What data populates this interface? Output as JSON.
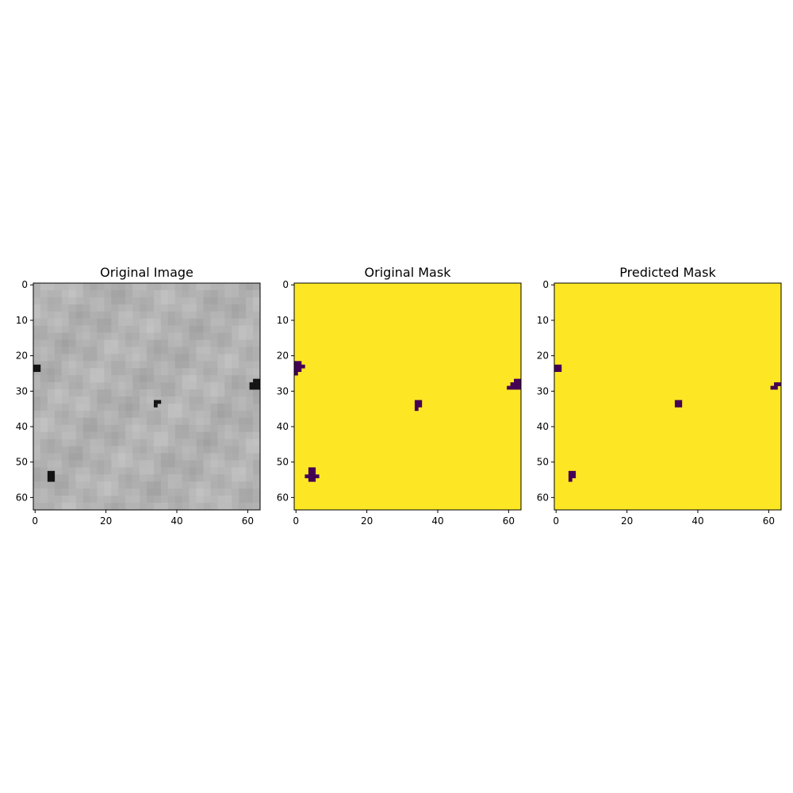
{
  "colors": {
    "mask_background": "#fde725",
    "mask_foreground": "#440154",
    "axis": "#000000",
    "image_base": "#b4b4b4",
    "image_spot": "#141414"
  },
  "chart_data": [
    {
      "type": "heatmap",
      "id": "original-image",
      "title": "Original Image",
      "colormap": "gray",
      "grid_size": [
        64,
        64
      ],
      "xlim": [
        -0.5,
        63.5
      ],
      "ylim": [
        63.5,
        -0.5
      ],
      "x_ticks": [
        0,
        20,
        40,
        60
      ],
      "y_ticks": [
        0,
        10,
        20,
        30,
        40,
        50,
        60
      ],
      "grid": false,
      "dark_cells": [
        [
          0,
          23
        ],
        [
          1,
          23
        ],
        [
          0,
          24
        ],
        [
          1,
          24
        ],
        [
          34,
          33
        ],
        [
          35,
          33
        ],
        [
          34,
          34
        ],
        [
          61,
          28
        ],
        [
          62,
          28
        ],
        [
          63,
          28
        ],
        [
          61,
          29
        ],
        [
          62,
          29
        ],
        [
          63,
          29
        ],
        [
          62,
          27
        ],
        [
          63,
          27
        ],
        [
          4,
          53
        ],
        [
          5,
          53
        ],
        [
          4,
          54
        ],
        [
          5,
          54
        ],
        [
          4,
          55
        ],
        [
          5,
          55
        ]
      ]
    },
    {
      "type": "heatmap",
      "id": "original-mask",
      "title": "Original Mask",
      "colormap": "viridis",
      "grid_size": [
        64,
        64
      ],
      "xlim": [
        -0.5,
        63.5
      ],
      "ylim": [
        63.5,
        -0.5
      ],
      "x_ticks": [
        0,
        20,
        40,
        60
      ],
      "y_ticks": [
        0,
        10,
        20,
        30,
        40,
        50,
        60
      ],
      "grid": false,
      "dark_cells": [
        [
          0,
          22
        ],
        [
          1,
          22
        ],
        [
          0,
          23
        ],
        [
          1,
          23
        ],
        [
          2,
          23
        ],
        [
          0,
          24
        ],
        [
          1,
          24
        ],
        [
          0,
          25
        ],
        [
          34,
          33
        ],
        [
          35,
          33
        ],
        [
          34,
          34
        ],
        [
          35,
          34
        ],
        [
          34,
          35
        ],
        [
          62,
          27
        ],
        [
          63,
          27
        ],
        [
          61,
          28
        ],
        [
          62,
          28
        ],
        [
          63,
          28
        ],
        [
          60,
          29
        ],
        [
          61,
          29
        ],
        [
          62,
          29
        ],
        [
          63,
          29
        ],
        [
          4,
          52
        ],
        [
          5,
          52
        ],
        [
          4,
          53
        ],
        [
          5,
          53
        ],
        [
          3,
          54
        ],
        [
          4,
          54
        ],
        [
          5,
          54
        ],
        [
          6,
          54
        ],
        [
          4,
          55
        ],
        [
          5,
          55
        ]
      ]
    },
    {
      "type": "heatmap",
      "id": "predicted-mask",
      "title": "Predicted Mask",
      "colormap": "viridis",
      "grid_size": [
        64,
        64
      ],
      "xlim": [
        -0.5,
        63.5
      ],
      "ylim": [
        63.5,
        -0.5
      ],
      "x_ticks": [
        0,
        20,
        40,
        60
      ],
      "y_ticks": [
        0,
        10,
        20,
        30,
        40,
        50,
        60
      ],
      "grid": false,
      "dark_cells": [
        [
          0,
          23
        ],
        [
          1,
          23
        ],
        [
          0,
          24
        ],
        [
          1,
          24
        ],
        [
          34,
          33
        ],
        [
          35,
          33
        ],
        [
          34,
          34
        ],
        [
          35,
          34
        ],
        [
          62,
          28
        ],
        [
          63,
          28
        ],
        [
          61,
          29
        ],
        [
          62,
          29
        ],
        [
          4,
          53
        ],
        [
          5,
          53
        ],
        [
          4,
          54
        ],
        [
          5,
          54
        ],
        [
          4,
          55
        ]
      ]
    }
  ]
}
